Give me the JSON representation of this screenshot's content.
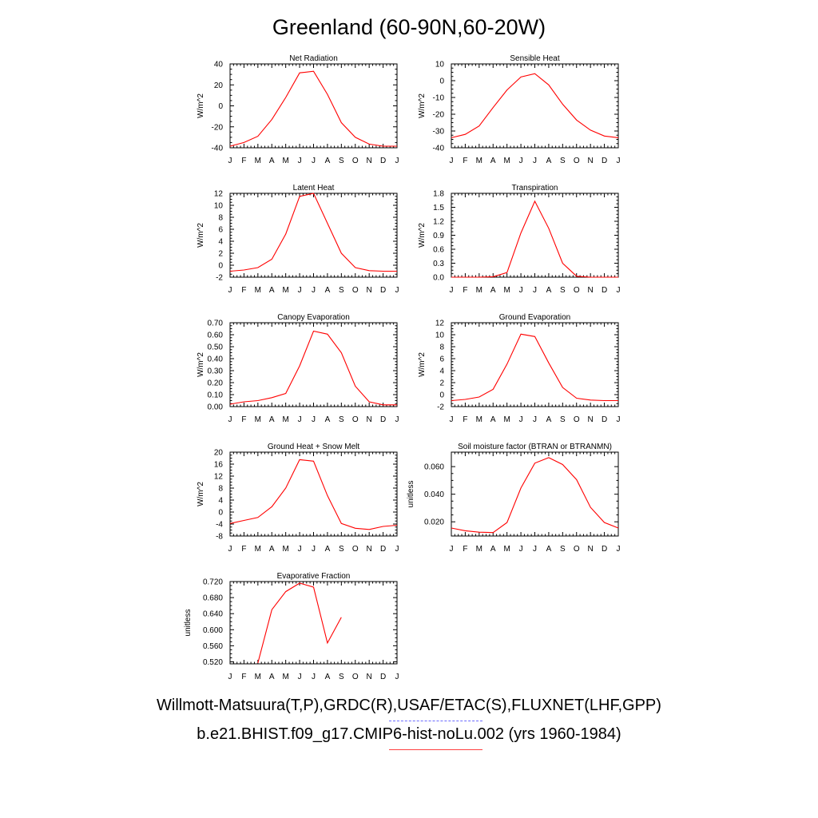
{
  "title": "Greenland (60-90N,60-20W)",
  "legend": {
    "obs_label": "Willmott-Matsuura(T,P),GRDC(R),USAF/ETAC(S),FLUXNET(LHF,GPP)",
    "obs_color": "#6b6bff",
    "model_label": "b.e21.BHIST.f09_g17.CMIP6-hist-noLu.002 (yrs 1960-1984)",
    "model_color": "#ff0000"
  },
  "chart_data": [
    {
      "type": "line",
      "title": "Net Radiation",
      "ylabel": "W/m^2",
      "x": [
        "J",
        "F",
        "M",
        "A",
        "M",
        "J",
        "J",
        "A",
        "S",
        "O",
        "N",
        "D",
        "J"
      ],
      "ylim": [
        -40,
        40
      ],
      "yticks": [
        -40,
        -20,
        0,
        20,
        40
      ],
      "ytick_labels": [
        "-40",
        "-20",
        "0",
        "20",
        "40"
      ],
      "series": [
        {
          "values": [
            -38.5,
            -35,
            -29,
            -13,
            8,
            31.5,
            33,
            11,
            -16,
            -30,
            -36.5,
            -38.5,
            -38.5
          ]
        }
      ]
    },
    {
      "type": "line",
      "title": "Sensible Heat",
      "ylabel": "W/m^2",
      "x": [
        "J",
        "F",
        "M",
        "A",
        "M",
        "J",
        "J",
        "A",
        "S",
        "O",
        "N",
        "D",
        "J"
      ],
      "ylim": [
        -40,
        10
      ],
      "yticks": [
        -40,
        -30,
        -20,
        -10,
        0,
        10
      ],
      "ytick_labels": [
        "-40",
        "-30",
        "-20",
        "-10",
        "0",
        "10"
      ],
      "series": [
        {
          "values": [
            -34,
            -32,
            -27,
            -16,
            -5.5,
            2.2,
            4.2,
            -2.5,
            -14,
            -23.5,
            -29.5,
            -33,
            -34
          ]
        }
      ]
    },
    {
      "type": "line",
      "title": "Latent Heat",
      "ylabel": "W/m^2",
      "x": [
        "J",
        "F",
        "M",
        "A",
        "M",
        "J",
        "J",
        "A",
        "S",
        "O",
        "N",
        "D",
        "J"
      ],
      "ylim": [
        -2,
        12
      ],
      "yticks": [
        -2,
        0,
        2,
        4,
        6,
        8,
        10,
        12
      ],
      "ytick_labels": [
        "-2",
        "0",
        "2",
        "4",
        "6",
        "8",
        "10",
        "12"
      ],
      "series": [
        {
          "values": [
            -1.0,
            -0.8,
            -0.4,
            1.0,
            5.2,
            11.5,
            12.0,
            7.0,
            2.0,
            -0.4,
            -0.9,
            -1.0,
            -1.0
          ]
        }
      ]
    },
    {
      "type": "line",
      "title": "Transpiration",
      "ylabel": "W/m^2",
      "x": [
        "J",
        "F",
        "M",
        "A",
        "M",
        "J",
        "J",
        "A",
        "S",
        "O",
        "N",
        "D",
        "J"
      ],
      "ylim": [
        0,
        1.8
      ],
      "yticks": [
        0,
        0.3,
        0.6,
        0.9,
        1.2,
        1.5,
        1.8
      ],
      "ytick_labels": [
        "0.0",
        "0.3",
        "0.6",
        "0.9",
        "1.2",
        "1.5",
        "1.8"
      ],
      "series": [
        {
          "values": [
            0.0,
            0.0,
            0.0,
            0.01,
            0.1,
            0.95,
            1.63,
            1.05,
            0.3,
            0.02,
            0.0,
            0.0,
            0.0
          ]
        }
      ]
    },
    {
      "type": "line",
      "title": "Canopy Evaporation",
      "ylabel": "W/m^2",
      "x": [
        "J",
        "F",
        "M",
        "A",
        "M",
        "J",
        "J",
        "A",
        "S",
        "O",
        "N",
        "D",
        "J"
      ],
      "ylim": [
        0,
        0.7
      ],
      "yticks": [
        0,
        0.1,
        0.2,
        0.3,
        0.4,
        0.5,
        0.6,
        0.7
      ],
      "ytick_labels": [
        "0.00",
        "0.10",
        "0.20",
        "0.30",
        "0.40",
        "0.50",
        "0.60",
        "0.70"
      ],
      "series": [
        {
          "values": [
            0.02,
            0.04,
            0.05,
            0.075,
            0.11,
            0.34,
            0.63,
            0.605,
            0.45,
            0.17,
            0.04,
            0.015,
            0.015
          ]
        }
      ]
    },
    {
      "type": "line",
      "title": "Ground Evaporation",
      "ylabel": "W/m^2",
      "x": [
        "J",
        "F",
        "M",
        "A",
        "M",
        "J",
        "J",
        "A",
        "S",
        "O",
        "N",
        "D",
        "J"
      ],
      "ylim": [
        -2,
        12
      ],
      "yticks": [
        -2,
        0,
        2,
        4,
        6,
        8,
        10,
        12
      ],
      "ytick_labels": [
        "-2",
        "0",
        "2",
        "4",
        "6",
        "8",
        "10",
        "12"
      ],
      "series": [
        {
          "values": [
            -1.0,
            -0.8,
            -0.4,
            0.9,
            5.1,
            10.1,
            9.7,
            5.3,
            1.2,
            -0.6,
            -0.9,
            -1.0,
            -1.0
          ]
        }
      ]
    },
    {
      "type": "line",
      "title": "Ground Heat + Snow Melt",
      "ylabel": "W/m^2",
      "x": [
        "J",
        "F",
        "M",
        "A",
        "M",
        "J",
        "J",
        "A",
        "S",
        "O",
        "N",
        "D",
        "J"
      ],
      "ylim": [
        -8,
        20
      ],
      "yticks": [
        -8,
        -4,
        0,
        4,
        8,
        12,
        16,
        20
      ],
      "ytick_labels": [
        "-8",
        "-4",
        "0",
        "4",
        "8",
        "12",
        "16",
        "20"
      ],
      "series": [
        {
          "values": [
            -3.8,
            -2.8,
            -1.8,
            1.8,
            8.0,
            17.5,
            17.0,
            5.5,
            -3.8,
            -5.4,
            -5.8,
            -4.8,
            -4.4
          ]
        }
      ]
    },
    {
      "type": "line",
      "title": "Soil moisture factor (BTRAN or BTRANMN)",
      "ylabel": "unitless",
      "x": [
        "J",
        "F",
        "M",
        "A",
        "M",
        "J",
        "J",
        "A",
        "S",
        "O",
        "N",
        "D",
        "J"
      ],
      "ylim": [
        0.0097,
        0.0705
      ],
      "yticks": [
        0.02,
        0.04,
        0.06
      ],
      "ytick_labels": [
        "0.020",
        "0.040",
        "0.060"
      ],
      "series": [
        {
          "values": [
            0.0155,
            0.0135,
            0.0125,
            0.0122,
            0.0195,
            0.0445,
            0.0625,
            0.0665,
            0.0615,
            0.0505,
            0.0305,
            0.0195,
            0.0155
          ]
        }
      ]
    },
    {
      "type": "line",
      "title": "Evaporative Fraction",
      "ylabel": "unitless",
      "x": [
        "J",
        "F",
        "M",
        "A",
        "M",
        "J",
        "J",
        "A",
        "S",
        "O",
        "N",
        "D",
        "J"
      ],
      "ylim": [
        0.515,
        0.72
      ],
      "yticks": [
        0.52,
        0.56,
        0.6,
        0.64,
        0.68,
        0.72
      ],
      "ytick_labels": [
        "0.520",
        "0.560",
        "0.600",
        "0.640",
        "0.680",
        "0.720"
      ],
      "series": [
        {
          "values": [
            null,
            null,
            0.517,
            0.65,
            0.695,
            0.716,
            0.706,
            0.567,
            0.631,
            null,
            null,
            null,
            null
          ]
        }
      ]
    }
  ]
}
